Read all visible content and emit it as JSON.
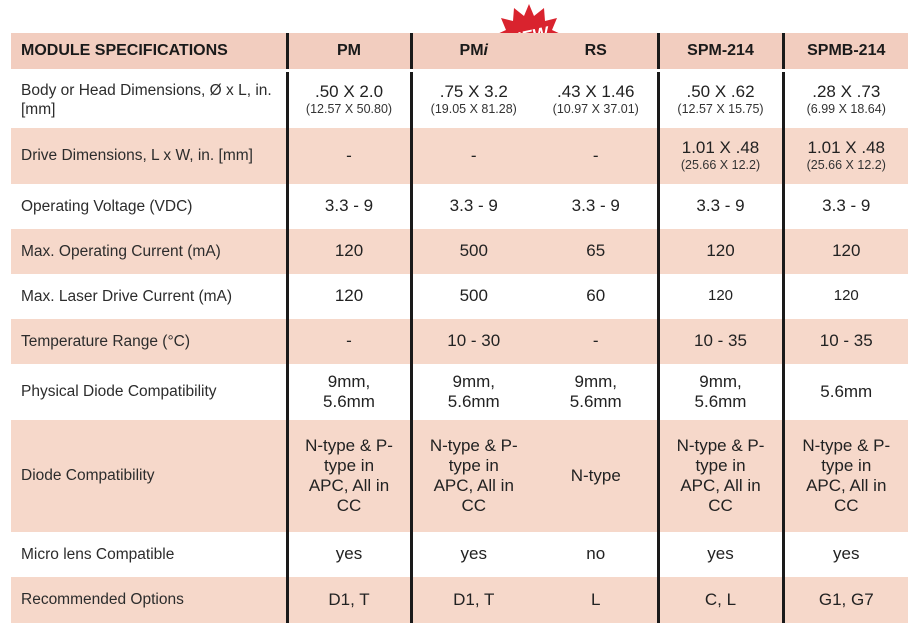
{
  "header": {
    "title": "MODULE SPECIFICATIONS",
    "col_pm": "PM",
    "col_pmi_base": "PM",
    "col_pmi_suffix": "i",
    "col_rs": "RS",
    "col_spm214": "SPM-214",
    "col_spmb214": "SPMB-214"
  },
  "badge": {
    "text": "NEW",
    "color": "#d9232e"
  },
  "colors": {
    "header_bg": "#f2cdbf",
    "even_row_bg": "#f6d8ca",
    "separator": "#1a1a1a"
  },
  "rows": [
    {
      "label": "Body or Head Dimensions, Ø x L, in. [mm]",
      "cells": [
        {
          "main": ".50 X 2.0",
          "sub": "(12.57 X 50.80)"
        },
        {
          "main": ".75 X 3.2",
          "sub": "(19.05 X 81.28)"
        },
        {
          "main": ".43 X 1.46",
          "sub": "(10.97 X 37.01)"
        },
        {
          "main": ".50 X .62",
          "sub": "(12.57 X 15.75)"
        },
        {
          "main": ".28 X .73",
          "sub": "(6.99 X 18.64)"
        }
      ]
    },
    {
      "label": "Drive Dimensions, L x W, in. [mm]",
      "cells": [
        {
          "main": "-",
          "sub": ""
        },
        {
          "main": "-",
          "sub": ""
        },
        {
          "main": "-",
          "sub": ""
        },
        {
          "main": "1.01 X .48",
          "sub": "(25.66 X 12.2)"
        },
        {
          "main": "1.01 X .48",
          "sub": "(25.66 X 12.2)"
        }
      ]
    },
    {
      "label": "Operating Voltage (VDC)",
      "cells": [
        "3.3 - 9",
        "3.3 - 9",
        "3.3 - 9",
        "3.3 - 9",
        "3.3 - 9"
      ]
    },
    {
      "label": "Max. Operating Current  (mA)",
      "cells": [
        "120",
        "500",
        "65",
        "120",
        "120"
      ]
    },
    {
      "label": "Max. Laser Drive Current (mA)",
      "cells": [
        "120",
        "500",
        "60",
        "120",
        "120"
      ]
    },
    {
      "label": "Temperature Range (°C)",
      "cells": [
        "-",
        "10 - 30",
        "-",
        "10 - 35",
        "10 - 35"
      ]
    },
    {
      "label": "Physical Diode Compatibility",
      "cells": [
        "9mm, 5.6mm",
        "9mm, 5.6mm",
        "9mm, 5.6mm",
        "9mm, 5.6mm",
        "5.6mm"
      ]
    },
    {
      "label": "Diode Compatibility",
      "cells": [
        "N-type & P-type in APC, All in CC",
        "N-type & P-type in APC, All in CC",
        "N-type",
        "N-type & P-type in APC, All in CC",
        "N-type & P-type in APC, All in CC"
      ]
    },
    {
      "label": "Micro lens Compatible",
      "cells": [
        "yes",
        "yes",
        "no",
        "yes",
        "yes"
      ]
    },
    {
      "label": "Recommended Options",
      "cells": [
        "D1, T",
        "D1, T",
        "L",
        "C, L",
        "G1, G7"
      ]
    }
  ]
}
